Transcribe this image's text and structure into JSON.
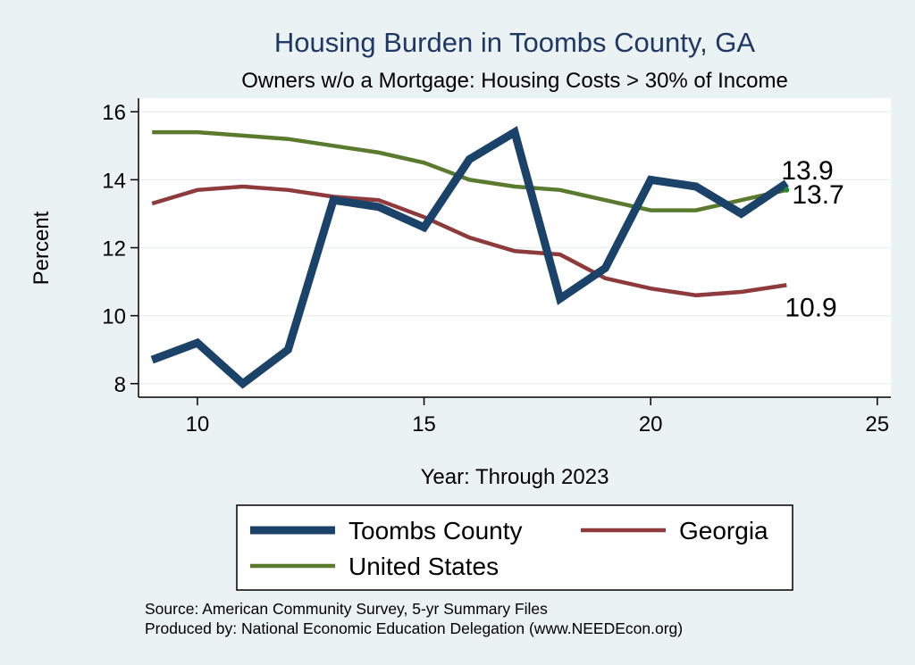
{
  "chart_data": {
    "type": "line",
    "title": "Housing Burden in Toombs County, GA",
    "subtitle": "Owners w/o a Mortgage: Housing Costs > 30% of Income",
    "xlabel": "Year: Through 2023",
    "ylabel": "Percent",
    "xlim": [
      8.7,
      25.3
    ],
    "ylim": [
      7.6,
      16.4
    ],
    "xticks": [
      10,
      15,
      20,
      25
    ],
    "yticks": [
      8,
      10,
      12,
      14,
      16
    ],
    "grid": true,
    "legend_position": "bottom",
    "x": [
      9,
      10,
      11,
      12,
      13,
      14,
      15,
      16,
      17,
      18,
      19,
      20,
      21,
      22,
      23
    ],
    "series": [
      {
        "name": "Toombs County",
        "color": "#1b4268",
        "values": [
          8.7,
          9.2,
          8.0,
          9.0,
          13.4,
          13.2,
          12.6,
          14.6,
          15.4,
          10.5,
          11.4,
          14.0,
          13.8,
          13.0,
          13.9
        ],
        "end_label": "13.9"
      },
      {
        "name": "Georgia",
        "color": "#8e3a3c",
        "values": [
          13.3,
          13.7,
          13.8,
          13.7,
          13.5,
          13.4,
          12.9,
          12.3,
          11.9,
          11.8,
          11.1,
          10.8,
          10.6,
          10.7,
          10.9
        ],
        "end_label": "10.9"
      },
      {
        "name": "United States",
        "color": "#5a7a2e",
        "values": [
          15.4,
          15.4,
          15.3,
          15.2,
          15.0,
          14.8,
          14.5,
          14.0,
          13.8,
          13.7,
          13.4,
          13.1,
          13.1,
          13.4,
          13.7
        ],
        "end_label": "13.7"
      }
    ],
    "notes": [
      "Source: American Community Survey, 5-yr Summary Files",
      "Produced by: National Economic Education Delegation (www.NEEDEcon.org)"
    ]
  }
}
